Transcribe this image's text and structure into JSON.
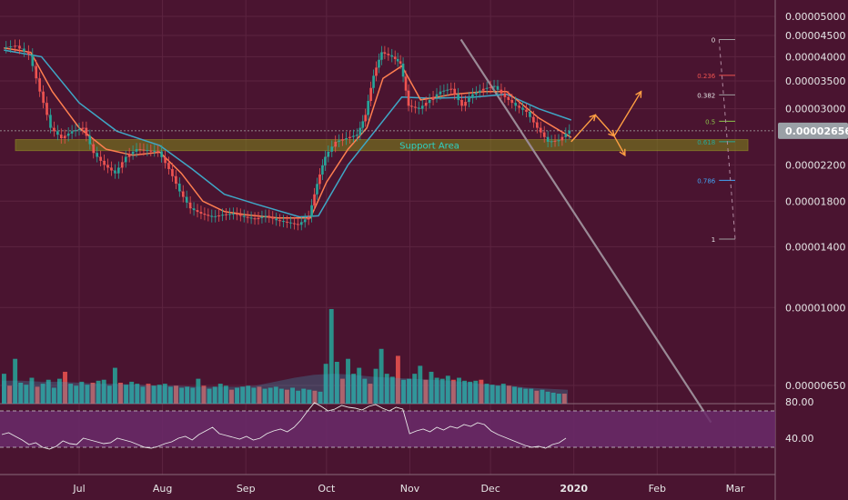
{
  "chart_data": {
    "type": "candlestick",
    "colors": {
      "background": "#4a1430",
      "grid": "#5c2440",
      "up": "#26a69a",
      "down": "#ef5350",
      "ema_fast": "#ff7f50",
      "ema_slow": "#3fa7c6",
      "support_fill": "#7f8a1a",
      "support_text": "#2ed3c4",
      "trendline": "#9a8a96",
      "projection": "#ff9f43",
      "rsi_line": "#e8e8e8",
      "rsi_band": "#6a2a6a",
      "price_tag_bg": "#9aa0a6",
      "axis_text": "#e6e6e6",
      "fib_label": "#e6e6e6",
      "fib_0236": "#ef5350",
      "fib_05": "#8bc34a",
      "fib_0618": "#26a69a",
      "fib_0786": "#42a5f5",
      "fib_1": "#9e9e9e"
    },
    "y_axis": {
      "scale": "log",
      "ticks": [
        "0.00005000",
        "0.00004500",
        "0.00004000",
        "0.00003500",
        "0.00003000",
        "0.00002200",
        "0.00001800",
        "0.00001400",
        "0.00001000",
        "0.00000650"
      ],
      "tick_values": [
        5e-05,
        4.5e-05,
        4e-05,
        3.5e-05,
        3e-05,
        2.2e-05,
        1.8e-05,
        1.4e-05,
        1e-05,
        6.5e-06
      ],
      "last_price_label": "0.00002656",
      "last_price": 2.656e-05
    },
    "x_axis": {
      "ticks": [
        "Jul",
        "Aug",
        "Sep",
        "Oct",
        "Nov",
        "Dec",
        "2020",
        "Feb",
        "Mar"
      ],
      "tick_dates": [
        "2019-07-01",
        "2019-08-01",
        "2019-09-01",
        "2019-10-01",
        "2019-11-01",
        "2019-12-01",
        "2020-01-01",
        "2020-02-01",
        "2020-03-01"
      ]
    },
    "price_series": {
      "name": "",
      "points": [
        [
          "2019-06-03",
          4.2e-05
        ],
        [
          "2019-06-08",
          4.25e-05
        ],
        [
          "2019-06-13",
          4.05e-05
        ],
        [
          "2019-06-17",
          3.3e-05
        ],
        [
          "2019-06-21",
          2.7e-05
        ],
        [
          "2019-06-25",
          2.55e-05
        ],
        [
          "2019-06-29",
          2.65e-05
        ],
        [
          "2019-07-03",
          2.7e-05
        ],
        [
          "2019-07-07",
          2.35e-05
        ],
        [
          "2019-07-11",
          2.2e-05
        ],
        [
          "2019-07-15",
          2.1e-05
        ],
        [
          "2019-07-19",
          2.3e-05
        ],
        [
          "2019-07-23",
          2.4e-05
        ],
        [
          "2019-07-27",
          2.38e-05
        ],
        [
          "2019-07-31",
          2.37e-05
        ],
        [
          "2019-08-04",
          2.15e-05
        ],
        [
          "2019-08-08",
          1.9e-05
        ],
        [
          "2019-08-12",
          1.73e-05
        ],
        [
          "2019-08-16",
          1.68e-05
        ],
        [
          "2019-08-20",
          1.65e-05
        ],
        [
          "2019-08-24",
          1.67e-05
        ],
        [
          "2019-08-28",
          1.68e-05
        ],
        [
          "2019-09-01",
          1.65e-05
        ],
        [
          "2019-09-05",
          1.63e-05
        ],
        [
          "2019-09-09",
          1.66e-05
        ],
        [
          "2019-09-13",
          1.62e-05
        ],
        [
          "2019-09-17",
          1.6e-05
        ],
        [
          "2019-09-21",
          1.58e-05
        ],
        [
          "2019-09-25",
          1.65e-05
        ],
        [
          "2019-09-28",
          1.98e-05
        ],
        [
          "2019-10-01",
          2.3e-05
        ],
        [
          "2019-10-05",
          2.5e-05
        ],
        [
          "2019-10-09",
          2.55e-05
        ],
        [
          "2019-10-13",
          2.6e-05
        ],
        [
          "2019-10-16",
          2.9e-05
        ],
        [
          "2019-10-19",
          3.6e-05
        ],
        [
          "2019-10-22",
          4.1e-05
        ],
        [
          "2019-10-26",
          4e-05
        ],
        [
          "2019-10-29",
          3.85e-05
        ],
        [
          "2019-11-01",
          3.05e-05
        ],
        [
          "2019-11-05",
          3e-05
        ],
        [
          "2019-11-09",
          3.15e-05
        ],
        [
          "2019-11-13",
          3.3e-05
        ],
        [
          "2019-11-17",
          3.35e-05
        ],
        [
          "2019-11-21",
          3.05e-05
        ],
        [
          "2019-11-25",
          3.25e-05
        ],
        [
          "2019-11-29",
          3.35e-05
        ],
        [
          "2019-12-03",
          3.4e-05
        ],
        [
          "2019-12-07",
          3.2e-05
        ],
        [
          "2019-12-11",
          3.05e-05
        ],
        [
          "2019-12-15",
          2.95e-05
        ],
        [
          "2019-12-19",
          2.7e-05
        ],
        [
          "2019-12-23",
          2.5e-05
        ],
        [
          "2019-12-27",
          2.52e-05
        ],
        [
          "2019-12-31",
          2.66e-05
        ]
      ]
    },
    "ema_fast": {
      "name": "",
      "points": [
        [
          "2019-06-03",
          4.2e-05
        ],
        [
          "2019-06-13",
          4.1e-05
        ],
        [
          "2019-06-21",
          3.3e-05
        ],
        [
          "2019-07-01",
          2.7e-05
        ],
        [
          "2019-07-11",
          2.4e-05
        ],
        [
          "2019-07-21",
          2.32e-05
        ],
        [
          "2019-07-31",
          2.36e-05
        ],
        [
          "2019-08-08",
          2.1e-05
        ],
        [
          "2019-08-16",
          1.8e-05
        ],
        [
          "2019-08-24",
          1.7e-05
        ],
        [
          "2019-09-01",
          1.67e-05
        ],
        [
          "2019-09-13",
          1.64e-05
        ],
        [
          "2019-09-25",
          1.64e-05
        ],
        [
          "2019-10-01",
          2e-05
        ],
        [
          "2019-10-09",
          2.4e-05
        ],
        [
          "2019-10-16",
          2.7e-05
        ],
        [
          "2019-10-22",
          3.55e-05
        ],
        [
          "2019-10-29",
          3.8e-05
        ],
        [
          "2019-11-05",
          3.15e-05
        ],
        [
          "2019-11-17",
          3.25e-05
        ],
        [
          "2019-11-29",
          3.3e-05
        ],
        [
          "2019-12-07",
          3.3e-05
        ],
        [
          "2019-12-19",
          2.85e-05
        ],
        [
          "2019-12-31",
          2.56e-05
        ]
      ]
    },
    "ema_slow": {
      "name": "",
      "points": [
        [
          "2019-06-03",
          4.15e-05
        ],
        [
          "2019-06-17",
          4e-05
        ],
        [
          "2019-07-01",
          3.1e-05
        ],
        [
          "2019-07-15",
          2.65e-05
        ],
        [
          "2019-07-31",
          2.45e-05
        ],
        [
          "2019-08-12",
          2.15e-05
        ],
        [
          "2019-08-24",
          1.87e-05
        ],
        [
          "2019-09-05",
          1.77e-05
        ],
        [
          "2019-09-21",
          1.65e-05
        ],
        [
          "2019-09-28",
          1.66e-05
        ],
        [
          "2019-10-09",
          2.2e-05
        ],
        [
          "2019-10-19",
          2.65e-05
        ],
        [
          "2019-10-29",
          3.2e-05
        ],
        [
          "2019-11-09",
          3.18e-05
        ],
        [
          "2019-11-25",
          3.2e-05
        ],
        [
          "2019-12-07",
          3.25e-05
        ],
        [
          "2019-12-19",
          3e-05
        ],
        [
          "2019-12-31",
          2.82e-05
        ]
      ]
    },
    "support_area": {
      "label": "Support Area",
      "y_low": 2.38e-05,
      "y_high": 2.53e-05,
      "x_start": "2019-06-03",
      "x_end": "2020-03-18"
    },
    "trendline": {
      "from": [
        "2019-11-20",
        4.4e-05
      ],
      "to": [
        "2020-02-21",
        5.3e-06
      ]
    },
    "fib_retracement": {
      "x_start": "2020-02-24",
      "x_end": "2020-03-01",
      "levels": [
        {
          "label": "0",
          "value": 4.4e-05
        },
        {
          "label": "0.236",
          "value": 3.61e-05
        },
        {
          "label": "0.382",
          "value": 3.24e-05
        },
        {
          "label": "0.5",
          "value": 2.8e-05
        },
        {
          "label": "0.618",
          "value": 2.5e-05
        },
        {
          "label": "0.786",
          "value": 2.02e-05
        },
        {
          "label": "1",
          "value": 1.46e-05
        }
      ]
    },
    "projection_path": {
      "points": [
        [
          "2019-12-31",
          2.5e-05
        ],
        [
          "2020-01-09",
          2.9e-05
        ],
        [
          "2020-01-16",
          2.58e-05
        ],
        [
          "2020-01-26",
          3.3e-05
        ]
      ],
      "alt_end": [
        "2020-01-20",
        2.32e-05
      ]
    },
    "volume_bars": [
      3.0,
      1.8,
      4.5,
      2.1,
      1.9,
      2.6,
      1.7,
      2.0,
      2.4,
      1.6,
      2.5,
      3.2,
      2.0,
      1.8,
      2.2,
      1.9,
      2.1,
      2.3,
      2.4,
      1.8,
      3.6,
      2.1,
      1.9,
      2.2,
      2.0,
      1.7,
      2.0,
      1.8,
      1.9,
      2.0,
      1.7,
      1.8,
      1.6,
      1.7,
      1.6,
      2.5,
      1.8,
      1.5,
      1.7,
      2.0,
      1.8,
      1.4,
      1.6,
      1.7,
      1.8,
      1.6,
      1.7,
      1.5,
      1.6,
      1.7,
      1.5,
      1.4,
      1.6,
      1.3,
      1.5,
      1.4,
      1.3,
      1.2,
      4.0,
      9.5,
      4.2,
      2.5,
      4.5,
      3.0,
      3.6,
      2.5,
      2.0,
      3.5,
      5.5,
      3.0,
      2.7,
      4.8,
      2.4,
      2.5,
      3.0,
      3.8,
      2.4,
      3.2,
      2.6,
      2.5,
      2.8,
      2.4,
      2.6,
      2.3,
      2.2,
      2.3,
      2.4,
      2.0,
      1.9,
      1.8,
      2.0,
      1.8,
      1.7,
      1.6,
      1.5,
      1.5,
      1.3,
      1.4,
      1.2,
      1.1,
      1.0,
      1.0
    ],
    "volume_ma": [
      2.3,
      2.3,
      2.2,
      2.2,
      2.1,
      2.0,
      2.0,
      1.9,
      1.8,
      1.8,
      1.7,
      1.7,
      1.7,
      1.8,
      2.2,
      2.6,
      2.9,
      3.0,
      2.9,
      2.7,
      2.6,
      2.5,
      2.4,
      2.3,
      2.1,
      1.9,
      1.8,
      1.6,
      1.5,
      1.4
    ],
    "rsi": {
      "upper_label": "80.00",
      "lower_label": "40.00",
      "upper": 70,
      "lower": 30,
      "axis": [
        {
          "label": "80.00",
          "value": 80
        },
        {
          "label": "40.00",
          "value": 40
        }
      ],
      "values": [
        44,
        46,
        42,
        38,
        33,
        35,
        30,
        28,
        31,
        37,
        34,
        33,
        40,
        38,
        36,
        34,
        35,
        40,
        38,
        36,
        33,
        30,
        29,
        31,
        34,
        36,
        40,
        42,
        38,
        44,
        48,
        52,
        45,
        43,
        41,
        39,
        42,
        38,
        40,
        45,
        48,
        50,
        47,
        52,
        60,
        70,
        79,
        75,
        70,
        72,
        76,
        74,
        73,
        71,
        75,
        77,
        73,
        70,
        74,
        72,
        45,
        48,
        50,
        47,
        52,
        49,
        53,
        51,
        55,
        53,
        57,
        55,
        48,
        44,
        41,
        38,
        35,
        32,
        30,
        31,
        29,
        33,
        35,
        40
      ]
    }
  }
}
